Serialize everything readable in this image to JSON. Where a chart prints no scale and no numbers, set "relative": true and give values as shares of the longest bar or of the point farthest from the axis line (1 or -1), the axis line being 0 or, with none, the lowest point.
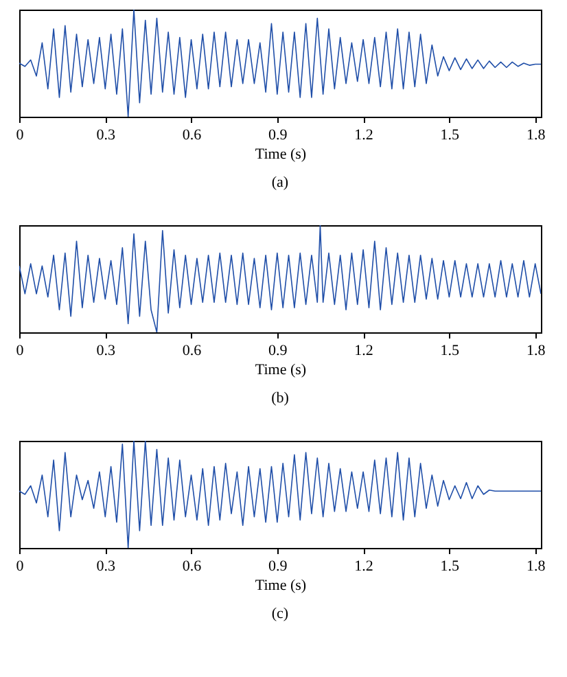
{
  "chart_data": [
    {
      "type": "line",
      "relative": true,
      "xlabel": "Time (s)",
      "annotations": [
        "(a)"
      ],
      "xlim": [
        0,
        1.82
      ],
      "xticks": [
        0,
        0.3,
        0.6,
        0.9,
        1.2,
        1.5,
        1.8
      ],
      "x": [
        0,
        0.02,
        0.04,
        0.06,
        0.08,
        0.1,
        0.12,
        0.14,
        0.16,
        0.18,
        0.2,
        0.22,
        0.24,
        0.26,
        0.28,
        0.3,
        0.32,
        0.34,
        0.36,
        0.38,
        0.4,
        0.42,
        0.44,
        0.46,
        0.48,
        0.5,
        0.52,
        0.54,
        0.56,
        0.58,
        0.6,
        0.62,
        0.64,
        0.66,
        0.68,
        0.7,
        0.72,
        0.74,
        0.76,
        0.78,
        0.8,
        0.82,
        0.84,
        0.86,
        0.88,
        0.9,
        0.92,
        0.94,
        0.96,
        0.98,
        1,
        1.02,
        1.04,
        1.06,
        1.08,
        1.1,
        1.12,
        1.14,
        1.16,
        1.18,
        1.2,
        1.22,
        1.24,
        1.26,
        1.28,
        1.3,
        1.32,
        1.34,
        1.36,
        1.38,
        1.4,
        1.42,
        1.44,
        1.46,
        1.48,
        1.5,
        1.52,
        1.54,
        1.56,
        1.58,
        1.6,
        1.62,
        1.64,
        1.66,
        1.68,
        1.7,
        1.72,
        1.74,
        1.76,
        1.78,
        1.8,
        1.82
      ],
      "series": [
        {
          "color": "#1f4ea8",
          "values": [
            0.5,
            0.47,
            0.53,
            0.38,
            0.69,
            0.26,
            0.82,
            0.18,
            0.85,
            0.23,
            0.77,
            0.28,
            0.72,
            0.31,
            0.74,
            0.26,
            0.77,
            0.21,
            0.82,
            0,
            1,
            0.13,
            0.9,
            0.21,
            0.92,
            0.23,
            0.79,
            0.21,
            0.74,
            0.18,
            0.72,
            0.26,
            0.77,
            0.26,
            0.79,
            0.28,
            0.79,
            0.28,
            0.72,
            0.31,
            0.72,
            0.31,
            0.69,
            0.23,
            0.87,
            0.21,
            0.79,
            0.23,
            0.79,
            0.18,
            0.87,
            0.18,
            0.92,
            0.21,
            0.82,
            0.26,
            0.74,
            0.31,
            0.69,
            0.33,
            0.72,
            0.31,
            0.74,
            0.28,
            0.79,
            0.26,
            0.82,
            0.26,
            0.79,
            0.28,
            0.77,
            0.31,
            0.67,
            0.38,
            0.56,
            0.43,
            0.55,
            0.44,
            0.54,
            0.45,
            0.53,
            0.45,
            0.52,
            0.46,
            0.51,
            0.46,
            0.51,
            0.47,
            0.5,
            0.48,
            0.49,
            0.49
          ]
        }
      ]
    },
    {
      "type": "line",
      "relative": true,
      "xlabel": "Time (s)",
      "annotations": [
        "(b)"
      ],
      "xlim": [
        0,
        1.82
      ],
      "xticks": [
        0,
        0.3,
        0.6,
        0.9,
        1.2,
        1.5,
        1.8
      ],
      "x": [
        0,
        0.02,
        0.04,
        0.06,
        0.08,
        0.1,
        0.12,
        0.14,
        0.16,
        0.18,
        0.2,
        0.22,
        0.24,
        0.26,
        0.28,
        0.3,
        0.32,
        0.34,
        0.36,
        0.38,
        0.4,
        0.42,
        0.44,
        0.46,
        0.48,
        0.5,
        0.52,
        0.54,
        0.56,
        0.58,
        0.6,
        0.62,
        0.64,
        0.66,
        0.68,
        0.7,
        0.72,
        0.74,
        0.76,
        0.78,
        0.8,
        0.82,
        0.84,
        0.86,
        0.88,
        0.9,
        0.92,
        0.94,
        0.96,
        0.98,
        1,
        1.02,
        1.04,
        1.05,
        1.06,
        1.08,
        1.1,
        1.12,
        1.14,
        1.16,
        1.18,
        1.2,
        1.22,
        1.24,
        1.26,
        1.28,
        1.3,
        1.32,
        1.34,
        1.36,
        1.38,
        1.4,
        1.42,
        1.44,
        1.46,
        1.48,
        1.5,
        1.52,
        1.54,
        1.56,
        1.58,
        1.6,
        1.62,
        1.64,
        1.66,
        1.68,
        1.7,
        1.72,
        1.74,
        1.76,
        1.78,
        1.8,
        1.82
      ],
      "series": [
        {
          "color": "#1f4ea8",
          "values": [
            0.62,
            0.36,
            0.64,
            0.36,
            0.62,
            0.33,
            0.72,
            0.21,
            0.74,
            0.15,
            0.85,
            0.23,
            0.72,
            0.28,
            0.69,
            0.31,
            0.67,
            0.26,
            0.79,
            0.08,
            0.92,
            0.15,
            0.85,
            0.21,
            0,
            0.95,
            0.18,
            0.77,
            0.23,
            0.72,
            0.26,
            0.69,
            0.28,
            0.72,
            0.28,
            0.74,
            0.28,
            0.72,
            0.26,
            0.74,
            0.26,
            0.69,
            0.23,
            0.72,
            0.21,
            0.74,
            0.23,
            0.72,
            0.23,
            0.74,
            0.26,
            0.72,
            0.28,
            1,
            0.28,
            0.74,
            0.26,
            0.72,
            0.21,
            0.74,
            0.26,
            0.77,
            0.23,
            0.85,
            0.21,
            0.79,
            0.26,
            0.74,
            0.28,
            0.72,
            0.28,
            0.72,
            0.31,
            0.69,
            0.31,
            0.67,
            0.33,
            0.67,
            0.33,
            0.64,
            0.33,
            0.64,
            0.33,
            0.64,
            0.33,
            0.67,
            0.33,
            0.64,
            0.33,
            0.67,
            0.33,
            0.64,
            0.36
          ]
        }
      ]
    },
    {
      "type": "line",
      "relative": true,
      "xlabel": "Time (s)",
      "annotations": [
        "(c)"
      ],
      "xlim": [
        0,
        1.82
      ],
      "xticks": [
        0,
        0.3,
        0.6,
        0.9,
        1.2,
        1.5,
        1.8
      ],
      "x": [
        0,
        0.02,
        0.04,
        0.06,
        0.08,
        0.1,
        0.12,
        0.14,
        0.16,
        0.18,
        0.2,
        0.22,
        0.24,
        0.26,
        0.28,
        0.3,
        0.32,
        0.34,
        0.36,
        0.38,
        0.4,
        0.42,
        0.44,
        0.46,
        0.48,
        0.5,
        0.52,
        0.54,
        0.56,
        0.58,
        0.6,
        0.62,
        0.64,
        0.66,
        0.68,
        0.7,
        0.72,
        0.74,
        0.76,
        0.78,
        0.8,
        0.82,
        0.84,
        0.86,
        0.88,
        0.9,
        0.92,
        0.94,
        0.96,
        0.98,
        1,
        1.02,
        1.04,
        1.06,
        1.08,
        1.1,
        1.12,
        1.14,
        1.16,
        1.18,
        1.2,
        1.22,
        1.24,
        1.26,
        1.28,
        1.3,
        1.32,
        1.34,
        1.36,
        1.38,
        1.4,
        1.42,
        1.44,
        1.46,
        1.48,
        1.5,
        1.52,
        1.54,
        1.56,
        1.58,
        1.6,
        1.62,
        1.64,
        1.66,
        1.82
      ],
      "series": [
        {
          "color": "#1f4ea8",
          "values": [
            0.53,
            0.5,
            0.58,
            0.42,
            0.68,
            0.29,
            0.82,
            0.16,
            0.89,
            0.29,
            0.68,
            0.45,
            0.63,
            0.37,
            0.71,
            0.29,
            0.76,
            0.24,
            0.97,
            0,
            1,
            0.16,
            1,
            0.21,
            0.92,
            0.21,
            0.84,
            0.26,
            0.82,
            0.29,
            0.68,
            0.26,
            0.74,
            0.21,
            0.76,
            0.26,
            0.79,
            0.32,
            0.71,
            0.21,
            0.76,
            0.29,
            0.74,
            0.24,
            0.76,
            0.24,
            0.79,
            0.29,
            0.87,
            0.26,
            0.89,
            0.32,
            0.84,
            0.29,
            0.79,
            0.34,
            0.74,
            0.34,
            0.71,
            0.37,
            0.71,
            0.34,
            0.82,
            0.32,
            0.84,
            0.29,
            0.89,
            0.26,
            0.84,
            0.29,
            0.79,
            0.37,
            0.68,
            0.39,
            0.63,
            0.45,
            0.58,
            0.46,
            0.61,
            0.46,
            0.58,
            0.5,
            0.54,
            0.53,
            0.53
          ]
        }
      ]
    }
  ]
}
